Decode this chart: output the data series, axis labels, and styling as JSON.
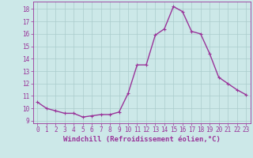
{
  "x": [
    0,
    1,
    2,
    3,
    4,
    5,
    6,
    7,
    8,
    9,
    10,
    11,
    12,
    13,
    14,
    15,
    16,
    17,
    18,
    19,
    20,
    21,
    22,
    23
  ],
  "y": [
    10.5,
    10.0,
    9.8,
    9.6,
    9.6,
    9.3,
    9.4,
    9.5,
    9.5,
    9.7,
    11.2,
    13.5,
    13.5,
    15.9,
    16.4,
    18.2,
    17.8,
    16.2,
    16.0,
    14.4,
    12.5,
    12.0,
    11.5,
    11.1
  ],
  "line_color": "#993399",
  "marker": "+",
  "marker_size": 3,
  "marker_linewidth": 0.8,
  "bg_color": "#cce8e8",
  "grid_color": "#aacccc",
  "xlabel": "Windchill (Refroidissement éolien,°C)",
  "ylabel": "",
  "ylim": [
    8.8,
    18.6
  ],
  "xlim": [
    -0.5,
    23.5
  ],
  "yticks": [
    9,
    10,
    11,
    12,
    13,
    14,
    15,
    16,
    17,
    18
  ],
  "xticks": [
    0,
    1,
    2,
    3,
    4,
    5,
    6,
    7,
    8,
    9,
    10,
    11,
    12,
    13,
    14,
    15,
    16,
    17,
    18,
    19,
    20,
    21,
    22,
    23
  ],
  "tick_color": "#993399",
  "label_color": "#993399",
  "tick_fontsize": 5.5,
  "xlabel_fontsize": 6.5,
  "line_width": 1.0,
  "spine_color": "#993399"
}
